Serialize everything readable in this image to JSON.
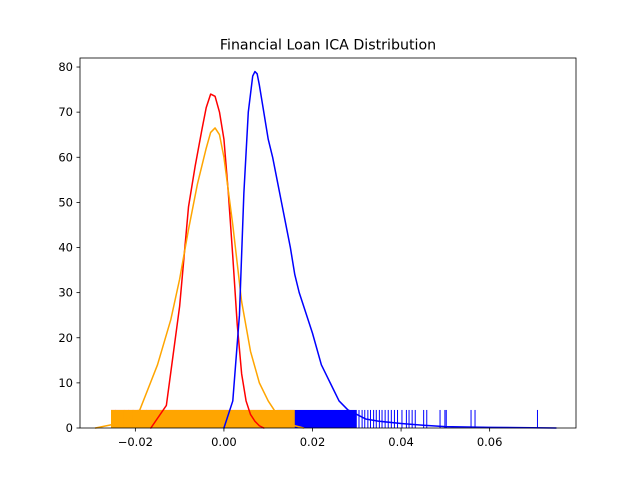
{
  "chart_data": {
    "type": "line",
    "title": "Financial Loan ICA Distribution",
    "xlabel": "",
    "ylabel": "",
    "xlim": [
      -0.0325,
      0.0795
    ],
    "ylim": [
      0,
      82
    ],
    "grid": false,
    "legend": null,
    "x_ticks": [
      {
        "value": -0.02,
        "label": "−0.02"
      },
      {
        "value": 0.0,
        "label": "0.00"
      },
      {
        "value": 0.02,
        "label": "0.02"
      },
      {
        "value": 0.04,
        "label": "0.04"
      },
      {
        "value": 0.06,
        "label": "0.06"
      }
    ],
    "y_ticks": [
      {
        "value": 0,
        "label": "0"
      },
      {
        "value": 10,
        "label": "10"
      },
      {
        "value": 20,
        "label": "20"
      },
      {
        "value": 30,
        "label": "30"
      },
      {
        "value": 40,
        "label": "40"
      },
      {
        "value": 50,
        "label": "50"
      },
      {
        "value": 60,
        "label": "60"
      },
      {
        "value": 70,
        "label": "70"
      },
      {
        "value": 80,
        "label": "80"
      }
    ],
    "series": [
      {
        "color": "#ff0000",
        "kde": {
          "x": [
            -0.0165,
            -0.013,
            -0.01,
            -0.008,
            -0.0065,
            -0.005,
            -0.004,
            -0.003,
            -0.002,
            -0.001,
            0.0,
            0.001,
            0.002,
            0.003,
            0.004,
            0.005,
            0.006,
            0.007,
            0.008,
            0.009
          ],
          "y": [
            0,
            5,
            27,
            49,
            58,
            66,
            71,
            74,
            73.5,
            70,
            64,
            52,
            38,
            23,
            12,
            6,
            3,
            1.5,
            0.5,
            0
          ]
        },
        "rug": {
          "range": [
            -0.0255,
            0.0095
          ],
          "height": 4,
          "outliers": [
            -0.0245,
            -0.0215,
            -0.0205,
            -0.0195,
            -0.0185,
            -0.0175,
            -0.0165
          ]
        }
      },
      {
        "color": "#ffa500",
        "kde": {
          "x": [
            -0.029,
            -0.024,
            -0.019,
            -0.015,
            -0.012,
            -0.01,
            -0.008,
            -0.006,
            -0.004,
            -0.003,
            -0.002,
            -0.001,
            0.0,
            0.002,
            0.004,
            0.006,
            0.008,
            0.01,
            0.012,
            0.014,
            0.016,
            0.018
          ],
          "y": [
            0,
            1,
            4,
            14,
            24,
            33,
            44,
            54,
            62,
            65.5,
            66.5,
            65,
            60,
            45,
            28,
            17,
            10,
            6,
            3,
            1.5,
            0.5,
            0
          ]
        },
        "rug": {
          "range": [
            -0.0255,
            0.016
          ],
          "height": 4,
          "outliers": [
            -0.0225,
            -0.0205
          ]
        }
      },
      {
        "color": "#0000ff",
        "kde": {
          "x": [
            0.0,
            0.002,
            0.0035,
            0.0045,
            0.0055,
            0.0065,
            0.007,
            0.0075,
            0.008,
            0.009,
            0.01,
            0.011,
            0.012,
            0.013,
            0.014,
            0.015,
            0.016,
            0.017,
            0.018,
            0.02,
            0.022,
            0.024,
            0.026,
            0.028,
            0.03,
            0.032,
            0.035,
            0.04,
            0.045,
            0.05,
            0.06,
            0.075
          ],
          "y": [
            0,
            6,
            25,
            52,
            70,
            78,
            79,
            78.5,
            76,
            70,
            64,
            60,
            55,
            50,
            45,
            40,
            34,
            30,
            27,
            21,
            14,
            10,
            6,
            4,
            3,
            2,
            1.5,
            1,
            0.6,
            0.3,
            0.15,
            0
          ]
        },
        "rug": {
          "range": [
            0.012,
            0.03
          ],
          "height": 4,
          "outliers": [
            0.0305,
            0.0312,
            0.0318,
            0.0325,
            0.0331,
            0.0338,
            0.0344,
            0.0351,
            0.0357,
            0.0364,
            0.0371,
            0.0378,
            0.0385,
            0.0392,
            0.0402,
            0.0412,
            0.0418,
            0.0425,
            0.0432,
            0.0451,
            0.0458,
            0.0488,
            0.0499,
            0.0502,
            0.0558,
            0.0567,
            0.0708
          ]
        }
      }
    ]
  }
}
